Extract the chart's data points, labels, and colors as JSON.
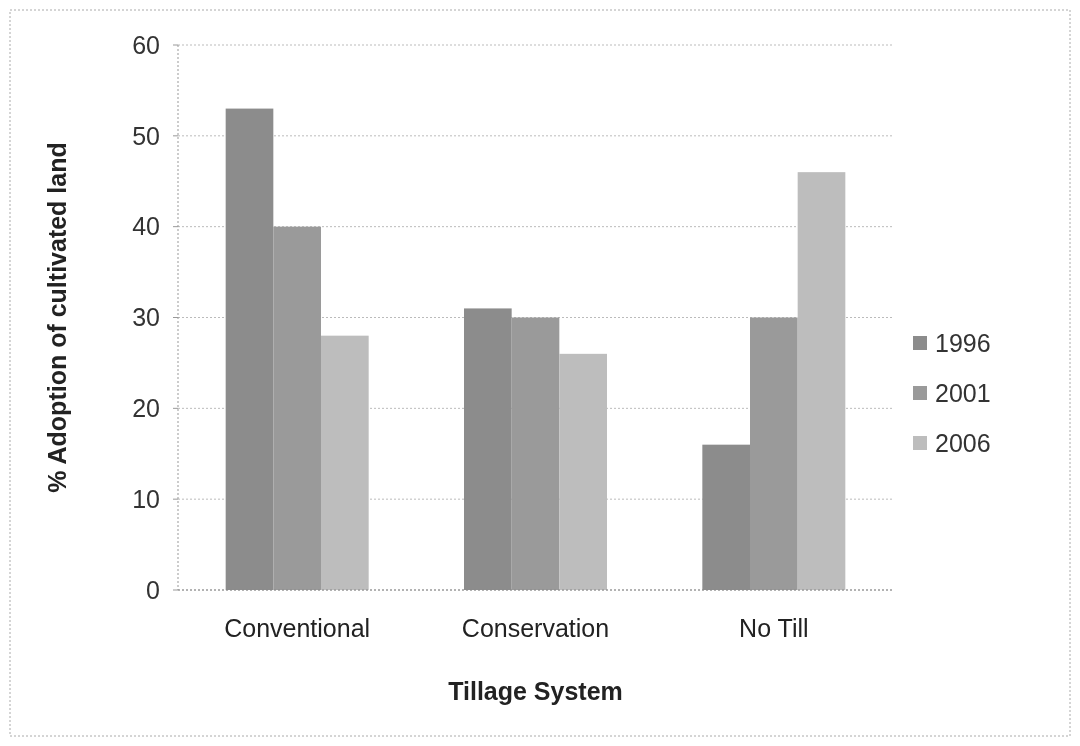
{
  "chart_data": {
    "type": "bar",
    "xlabel": "Tillage System",
    "ylabel": "% Adoption of cultivated land",
    "categories": [
      "Conventional",
      "Conservation",
      "No Till"
    ],
    "series": [
      {
        "name": "1996",
        "color": "#8c8c8c",
        "values": [
          53,
          31,
          16
        ]
      },
      {
        "name": "2001",
        "color": "#9a9a9a",
        "values": [
          40,
          30,
          30
        ]
      },
      {
        "name": "2006",
        "color": "#bdbdbd",
        "values": [
          28,
          26,
          46
        ]
      }
    ],
    "ylim": [
      0,
      60
    ],
    "yticks": [
      0,
      10,
      20,
      30,
      40,
      50,
      60
    ],
    "grid": "y",
    "legend": "right"
  }
}
